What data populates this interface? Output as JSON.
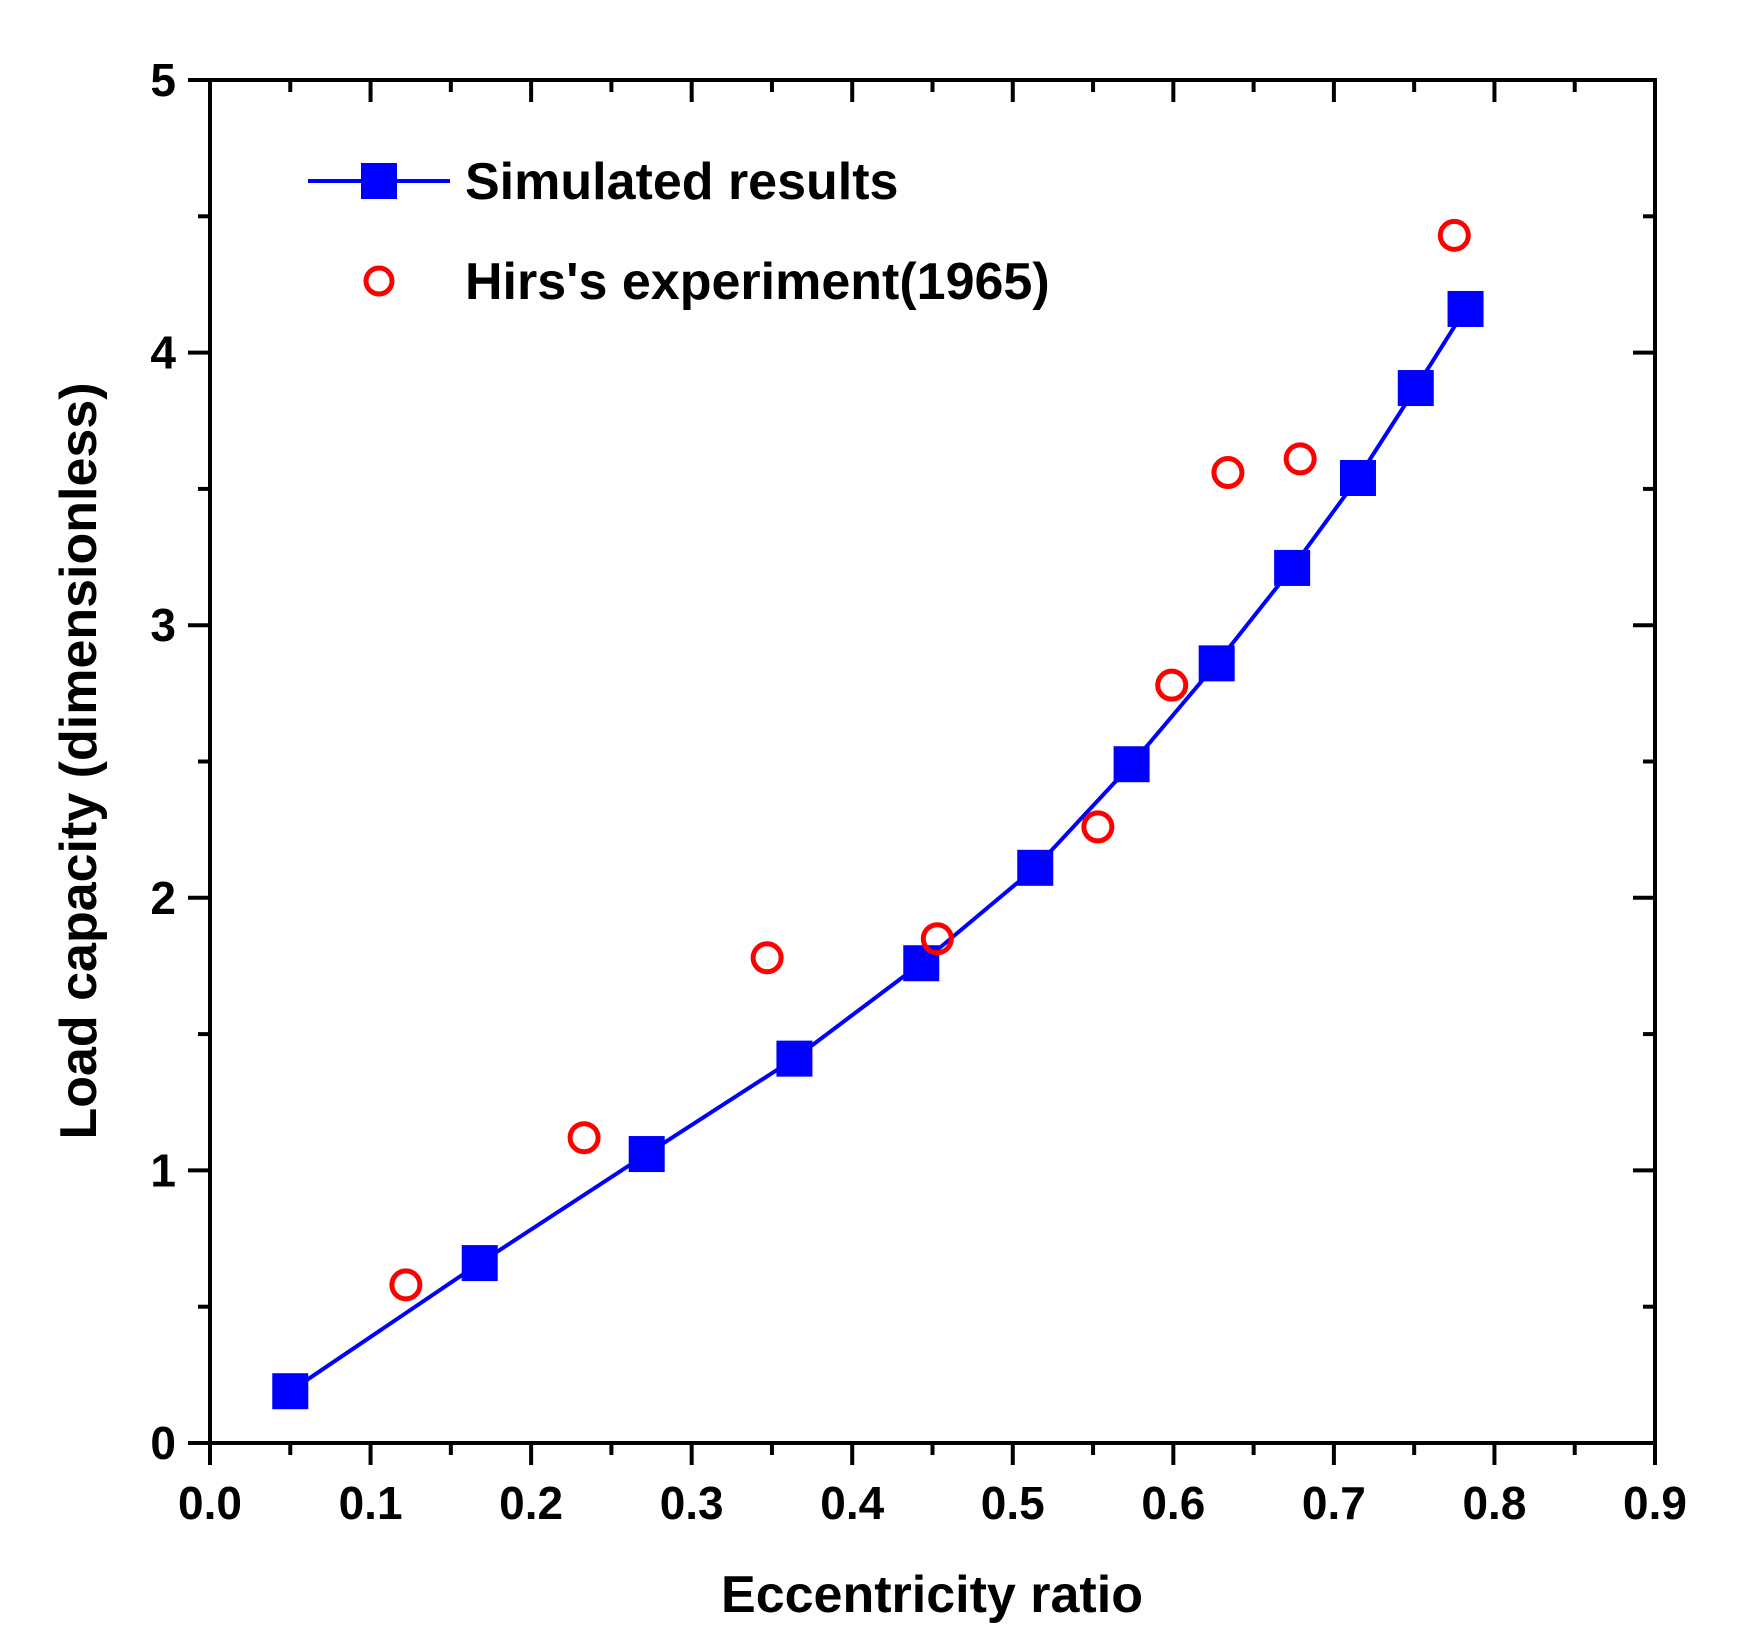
{
  "chart_data": {
    "type": "line",
    "title": "",
    "xlabel": "Eccentricity ratio",
    "ylabel": "Load capacity (dimensionless)",
    "xlim": [
      0.0,
      0.9
    ],
    "ylim": [
      0,
      5
    ],
    "x_ticks": [
      "0.0",
      "0.1",
      "0.2",
      "0.3",
      "0.4",
      "0.5",
      "0.6",
      "0.7",
      "0.8",
      "0.9"
    ],
    "y_ticks": [
      "0",
      "1",
      "2",
      "3",
      "4",
      "5"
    ],
    "x_minor_step": 0.05,
    "y_minor_step": 0.5,
    "grid": false,
    "legend_position": "top-left",
    "series": [
      {
        "name": "Simulated results",
        "style": "line-square",
        "color": "#0000ff",
        "x": [
          0.05,
          0.168,
          0.272,
          0.364,
          0.443,
          0.514,
          0.574,
          0.627,
          0.674,
          0.715,
          0.751,
          0.782
        ],
        "y": [
          0.19,
          0.66,
          1.06,
          1.41,
          1.76,
          2.11,
          2.49,
          2.86,
          3.21,
          3.54,
          3.87,
          4.16
        ]
      },
      {
        "name": "Hirs's experiment(1965)",
        "style": "open-circle",
        "color": "#ff0000",
        "x": [
          0.122,
          0.233,
          0.347,
          0.453,
          0.553,
          0.599,
          0.634,
          0.679,
          0.775
        ],
        "y": [
          0.58,
          1.12,
          1.78,
          1.85,
          2.26,
          2.78,
          3.56,
          3.61,
          4.43
        ]
      }
    ]
  }
}
